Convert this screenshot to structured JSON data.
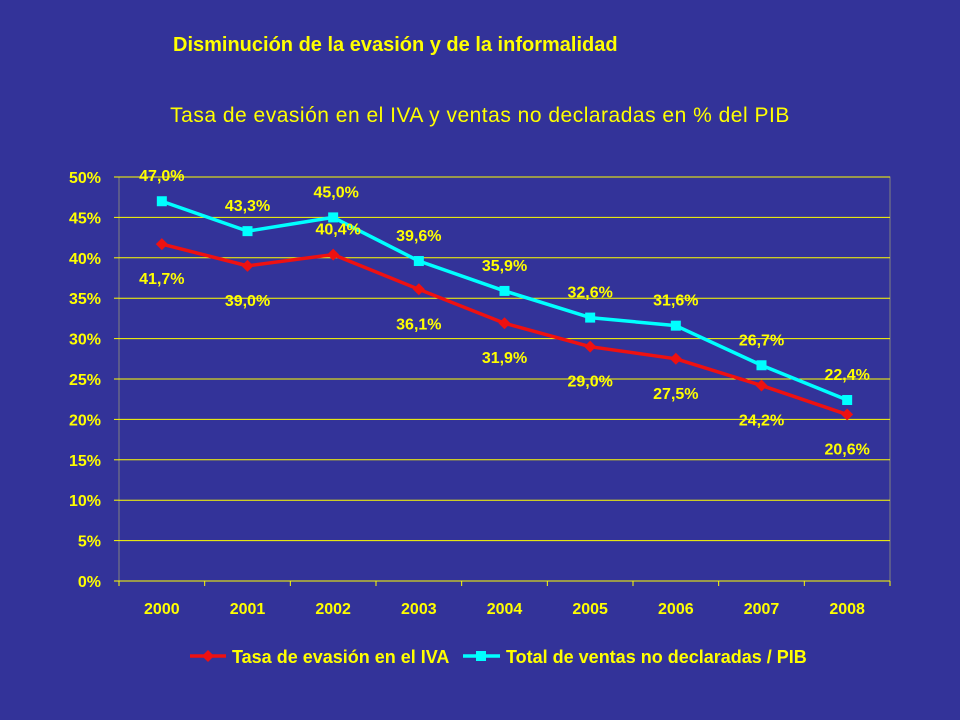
{
  "header": {
    "title": "Disminución de la evasión y de la informalidad"
  },
  "colors": {
    "background": "#333399",
    "text": "#ffff00",
    "series1": "#ee1111",
    "series2": "#00ffff",
    "grid": "#ffff00"
  },
  "chart_data": {
    "type": "line",
    "title": "Tasa de evasión en el IVA y ventas no declaradas en % del PIB",
    "categories": [
      "2000",
      "2001",
      "2002",
      "2003",
      "2004",
      "2005",
      "2006",
      "2007",
      "2008"
    ],
    "ylim": [
      0,
      50
    ],
    "yticks": [
      "0%",
      "5%",
      "10%",
      "15%",
      "20%",
      "25%",
      "30%",
      "35%",
      "40%",
      "45%",
      "50%"
    ],
    "grid": true,
    "legend_position": "bottom",
    "series": [
      {
        "name": "Tasa de evasión en el IVA",
        "color": "#ee1111",
        "marker": "diamond",
        "values": [
          41.7,
          39.0,
          40.4,
          36.1,
          31.9,
          29.0,
          27.5,
          24.2,
          20.6
        ],
        "labels": [
          "41,7%",
          "39,0%",
          "40,4%",
          "36,1%",
          "31,9%",
          "29,0%",
          "27,5%",
          "24,2%",
          "20,6%"
        ]
      },
      {
        "name": "Total de ventas no declaradas / PIB",
        "color": "#00ffff",
        "marker": "square",
        "values": [
          47.0,
          43.3,
          45.0,
          39.6,
          35.9,
          32.6,
          31.6,
          26.7,
          22.4
        ],
        "labels": [
          "47,0%",
          "43,3%",
          "45,0%",
          "39,6%",
          "35,9%",
          "32,6%",
          "31,6%",
          "26,7%",
          "22,4%"
        ]
      }
    ]
  }
}
